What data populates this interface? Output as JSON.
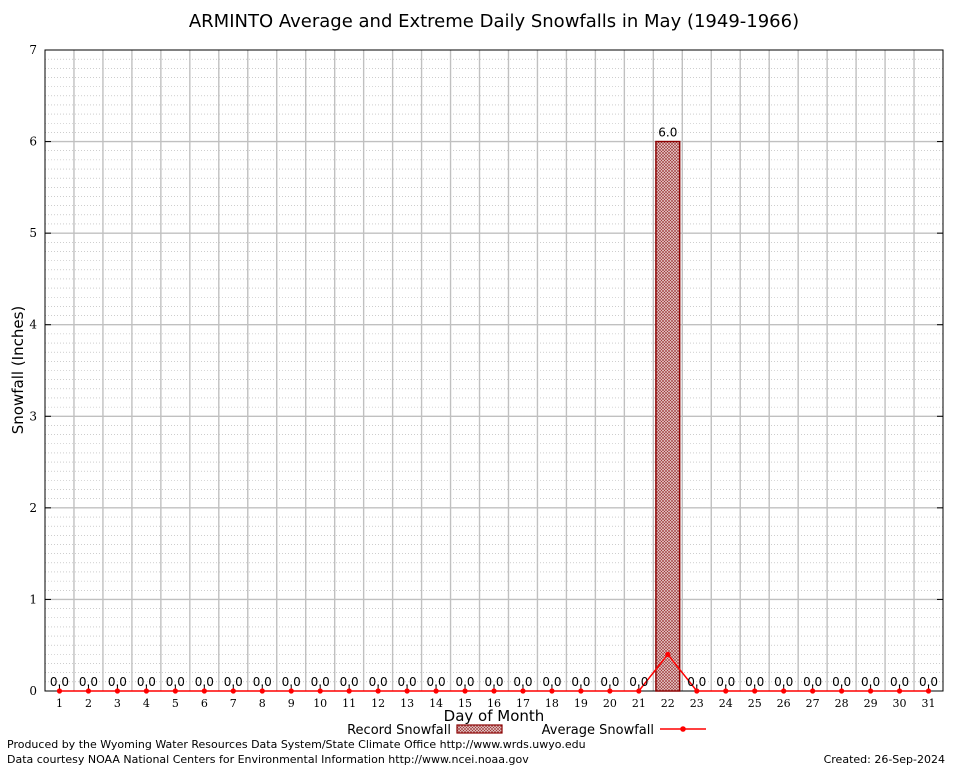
{
  "chart_data": {
    "type": "bar",
    "title": "ARMINTO Average and Extreme Daily Snowfalls in May (1949-1966)",
    "xlabel": "Day of Month",
    "ylabel": "Snowfall (Inches)",
    "ylim": [
      0,
      7
    ],
    "yticks": [
      0,
      1,
      2,
      3,
      4,
      5,
      6,
      7
    ],
    "categories": [
      1,
      2,
      3,
      4,
      5,
      6,
      7,
      8,
      9,
      10,
      11,
      12,
      13,
      14,
      15,
      16,
      17,
      18,
      19,
      20,
      21,
      22,
      23,
      24,
      25,
      26,
      27,
      28,
      29,
      30,
      31
    ],
    "series": [
      {
        "name": "Record Snowfall",
        "kind": "bar",
        "values": [
          0,
          0,
          0,
          0,
          0,
          0,
          0,
          0,
          0,
          0,
          0,
          0,
          0,
          0,
          0,
          0,
          0,
          0,
          0,
          0,
          0,
          6.0,
          0,
          0,
          0,
          0,
          0,
          0,
          0,
          0,
          0
        ]
      },
      {
        "name": "Average Snowfall",
        "kind": "line",
        "values": [
          0,
          0,
          0,
          0,
          0,
          0,
          0,
          0,
          0,
          0,
          0,
          0,
          0,
          0,
          0,
          0,
          0,
          0,
          0,
          0,
          0,
          0.4,
          0,
          0,
          0,
          0,
          0,
          0,
          0,
          0,
          0
        ]
      }
    ],
    "data_labels": [
      "0.0",
      "0.0",
      "0.0",
      "0.0",
      "0.0",
      "0.0",
      "0.0",
      "0.0",
      "0.0",
      "0.0",
      "0.0",
      "0.0",
      "0.0",
      "0.0",
      "0.0",
      "0.0",
      "0.0",
      "0.0",
      "0.0",
      "0.0",
      "0.0",
      "6.0",
      "0.0",
      "0.0",
      "0.0",
      "0.0",
      "0.0",
      "0.0",
      "0.0",
      "0.0",
      "0.0"
    ],
    "grid": true,
    "legend_position": "bottom",
    "colors": {
      "bar_fill": "#c8a0a0",
      "bar_edge": "#8b0000",
      "line": "#ff0000",
      "grid_major": "#c0c0c0",
      "grid_minor": "#b0b0b0"
    }
  },
  "footer": {
    "line1": "Produced by the Wyoming Water Resources Data System/State Climate Office http://www.wrds.uwyo.edu",
    "line2": "Data courtesy NOAA National Centers for Environmental Information http://www.ncei.noaa.gov",
    "created": "Created: 26-Sep-2024"
  }
}
